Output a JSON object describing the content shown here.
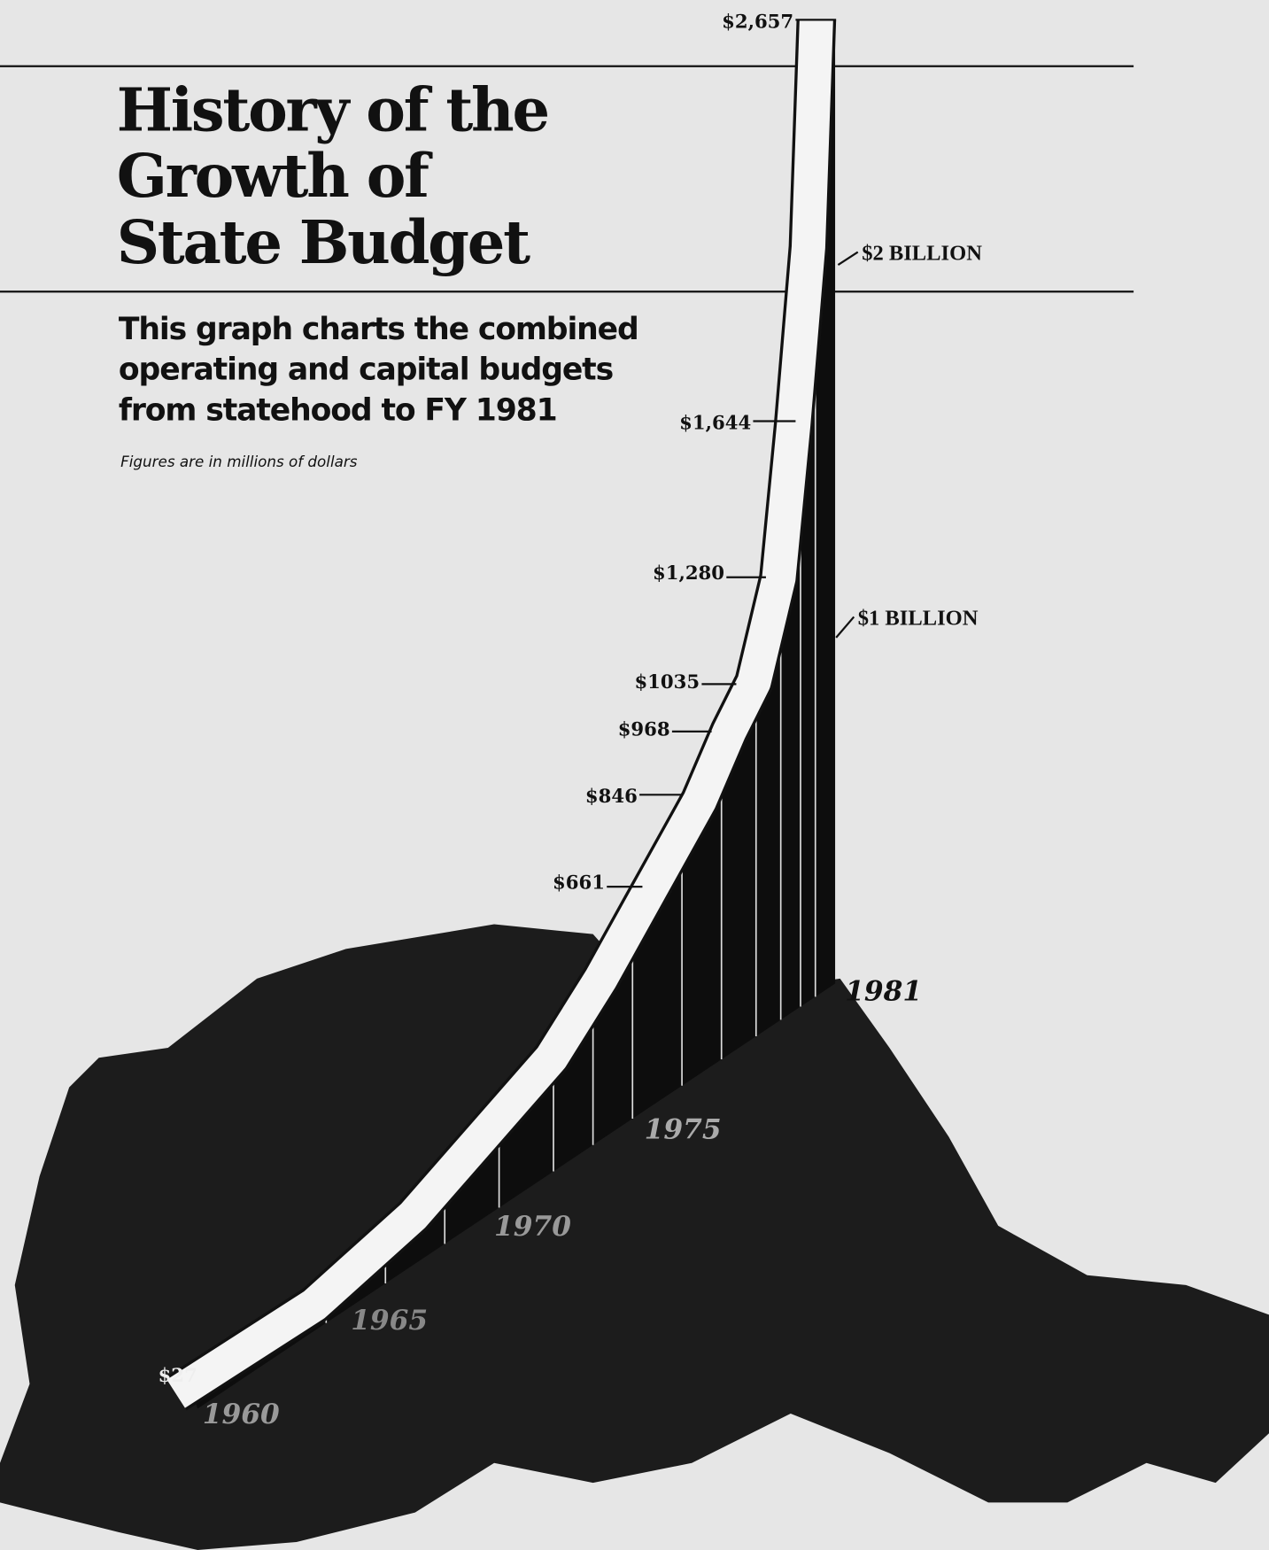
{
  "title_lines": [
    "History of the",
    "Growth of",
    "State Budget"
  ],
  "subtitle_lines": [
    "This graph charts the combined",
    "operating and capital budgets",
    "from statehood to FY 1981"
  ],
  "note": "Figures are in millions of dollars",
  "value_labels": [
    "$2,657",
    "$1,644",
    "$1,280",
    "$1035",
    "$968",
    "$846",
    "$661",
    "$27"
  ],
  "scale_labels": [
    "$2 BILLION",
    "$1 BILLION"
  ],
  "year_labels": [
    "1981",
    "1975",
    "1970",
    "1965",
    "1960"
  ]
}
